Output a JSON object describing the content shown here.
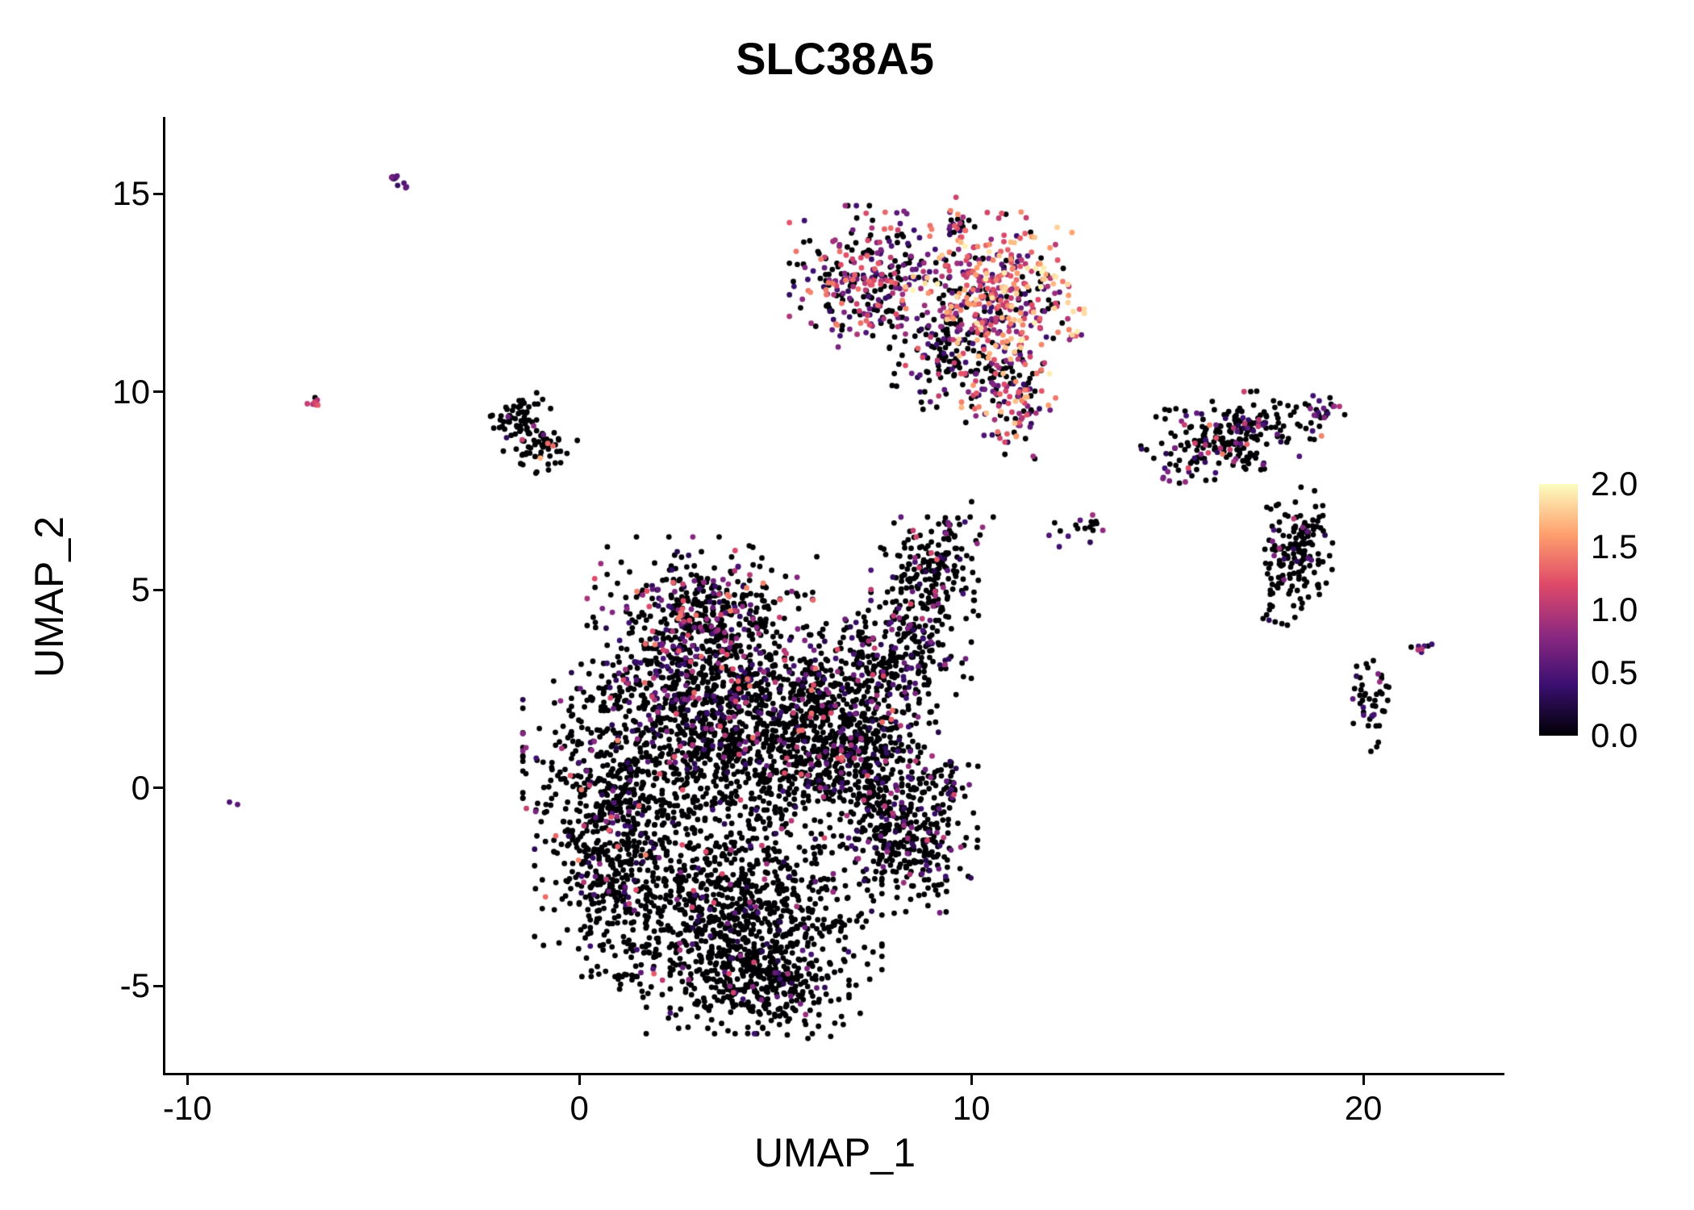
{
  "chart_data": {
    "type": "scatter",
    "title": "SLC38A5",
    "xlabel": "UMAP_1",
    "ylabel": "UMAP_2",
    "xlim": [
      -10.56,
      23.6
    ],
    "ylim": [
      -7.19,
      16.94
    ],
    "x_ticks": [
      -10,
      0,
      10,
      20
    ],
    "y_ticks": [
      15,
      10,
      5,
      0,
      -5
    ],
    "grid": false,
    "point_radius_px": 3.4,
    "seed": 7,
    "colorbar": {
      "position": "right",
      "vmin": 0,
      "vmax": 2,
      "ticks": [
        2.0,
        1.5,
        1.0,
        0.5,
        0.0
      ],
      "tick_labels": [
        "2.0",
        "1.5",
        "1.0",
        "0.5",
        "0.0"
      ],
      "colormap": "magma",
      "stops": [
        [
          0.0,
          "#000004"
        ],
        [
          0.2,
          "#3B0F70"
        ],
        [
          0.4,
          "#8C2981"
        ],
        [
          0.6,
          "#DE4968"
        ],
        [
          0.8,
          "#FE9F6D"
        ],
        [
          1.0,
          "#FCFDBF"
        ]
      ]
    },
    "clusters": [
      {
        "name": "top-left-streak",
        "cx": -4.72,
        "cy": 15.4,
        "sx": 0.16,
        "sy": 0.07,
        "rot": -35,
        "n": 10,
        "zero_frac": 0.35,
        "expr_min": 0.3,
        "expr_max": 0.9,
        "expr_pow": 1.0
      },
      {
        "name": "left-dot",
        "cx": -6.7,
        "cy": 9.72,
        "sx": 0.1,
        "sy": 0.08,
        "rot": 0,
        "n": 7,
        "zero_frac": 0.3,
        "expr_min": 0.4,
        "expr_max": 1.3,
        "expr_pow": 1.0
      },
      {
        "name": "left-cluster-a",
        "cx": -1.62,
        "cy": 9.35,
        "sx": 0.38,
        "sy": 0.22,
        "rot": 20,
        "n": 55,
        "zero_frac": 0.9,
        "expr_min": 0.3,
        "expr_max": 1.2,
        "expr_pow": 1.5
      },
      {
        "name": "left-cluster-b",
        "cx": -1.05,
        "cy": 8.62,
        "sx": 0.42,
        "sy": 0.28,
        "rot": 0,
        "n": 60,
        "zero_frac": 0.9,
        "expr_min": 0.3,
        "expr_max": 1.7,
        "expr_pow": 1.5
      },
      {
        "name": "left-single",
        "cx": -8.82,
        "cy": -0.42,
        "sx": 0.06,
        "sy": 0.05,
        "rot": 0,
        "n": 2,
        "zero_frac": 0.0,
        "expr_min": 0.45,
        "expr_max": 0.65,
        "expr_pow": 1.0
      },
      {
        "name": "top-cluster-left",
        "cx": 7.4,
        "cy": 12.9,
        "sx": 0.85,
        "sy": 0.75,
        "rot": 0,
        "n": 300,
        "zero_frac": 0.42,
        "expr_min": 0.3,
        "expr_max": 1.5,
        "expr_pow": 1.2
      },
      {
        "name": "top-cluster-right",
        "cx": 10.6,
        "cy": 12.5,
        "sx": 0.95,
        "sy": 0.85,
        "rot": 0,
        "n": 400,
        "zero_frac": 0.18,
        "expr_min": 0.35,
        "expr_max": 2.0,
        "expr_pow": 0.9
      },
      {
        "name": "top-cluster-stem",
        "cx": 10.95,
        "cy": 10.1,
        "sx": 0.5,
        "sy": 0.85,
        "rot": 0,
        "n": 160,
        "zero_frac": 0.3,
        "expr_min": 0.3,
        "expr_max": 1.8,
        "expr_pow": 1.1
      },
      {
        "name": "top-cluster-dark",
        "cx": 9.3,
        "cy": 11.0,
        "sx": 0.55,
        "sy": 0.6,
        "rot": 0,
        "n": 110,
        "zero_frac": 0.8,
        "expr_min": 0.25,
        "expr_max": 1.2,
        "expr_pow": 1.5
      },
      {
        "name": "top-streak",
        "cx": 9.65,
        "cy": 14.3,
        "sx": 0.12,
        "sy": 0.3,
        "rot": 0,
        "n": 25,
        "zero_frac": 0.35,
        "expr_min": 0.3,
        "expr_max": 1.6,
        "expr_pow": 1.2
      },
      {
        "name": "right-cluster",
        "cx": 16.6,
        "cy": 8.9,
        "sx": 0.95,
        "sy": 0.42,
        "rot": 12,
        "n": 240,
        "zero_frac": 0.8,
        "expr_min": 0.25,
        "expr_max": 1.5,
        "expr_pow": 1.6
      },
      {
        "name": "right-cluster-ne",
        "cx": 18.95,
        "cy": 9.5,
        "sx": 0.3,
        "sy": 0.18,
        "rot": 20,
        "n": 22,
        "zero_frac": 0.55,
        "expr_min": 0.3,
        "expr_max": 1.1,
        "expr_pow": 1.4
      },
      {
        "name": "right-cluster-sw",
        "cx": 15.15,
        "cy": 7.95,
        "sx": 0.18,
        "sy": 0.13,
        "rot": 0,
        "n": 10,
        "zero_frac": 0.5,
        "expr_min": 0.3,
        "expr_max": 1.0,
        "expr_pow": 1.4
      },
      {
        "name": "right-elongated",
        "cx": 18.25,
        "cy": 5.85,
        "sx": 0.42,
        "sy": 0.72,
        "rot": -15,
        "n": 170,
        "zero_frac": 0.9,
        "expr_min": 0.25,
        "expr_max": 1.2,
        "expr_pow": 1.6
      },
      {
        "name": "bottom-right-cluster",
        "cx": 20.25,
        "cy": 2.1,
        "sx": 0.28,
        "sy": 0.6,
        "rot": 0,
        "n": 45,
        "zero_frac": 0.85,
        "expr_min": 0.3,
        "expr_max": 1.1,
        "expr_pow": 1.5
      },
      {
        "name": "bottom-right-streak",
        "cx": 21.5,
        "cy": 3.55,
        "sx": 0.18,
        "sy": 0.07,
        "rot": 15,
        "n": 8,
        "zero_frac": 0.25,
        "expr_min": 0.4,
        "expr_max": 1.0,
        "expr_pow": 1.2
      },
      {
        "name": "mid-right-blob",
        "cx": 12.8,
        "cy": 6.5,
        "sx": 0.4,
        "sy": 0.17,
        "rot": 0,
        "n": 18,
        "zero_frac": 0.8,
        "expr_min": 0.3,
        "expr_max": 0.9,
        "expr_pow": 1.4
      },
      {
        "name": "bridge-dots",
        "cx": 9.8,
        "cy": 6.7,
        "sx": 0.4,
        "sy": 0.22,
        "rot": 0,
        "n": 14,
        "zero_frac": 0.55,
        "expr_min": 0.3,
        "expr_max": 1.0,
        "expr_pow": 1.3
      },
      {
        "name": "upper-arm-top",
        "cx": 9.0,
        "cy": 5.4,
        "sx": 0.65,
        "sy": 0.6,
        "rot": 0,
        "n": 200,
        "zero_frac": 0.88,
        "expr_min": 0.25,
        "expr_max": 1.3,
        "expr_pow": 1.6
      },
      {
        "name": "upper-arm-mid",
        "cx": 8.2,
        "cy": 3.4,
        "sx": 0.75,
        "sy": 0.65,
        "rot": 0,
        "n": 230,
        "zero_frac": 0.8,
        "expr_min": 0.25,
        "expr_max": 1.3,
        "expr_pow": 1.6
      },
      {
        "name": "main-top-lobe",
        "cx": 3.2,
        "cy": 4.3,
        "sx": 1.25,
        "sy": 0.85,
        "rot": 0,
        "n": 480,
        "zero_frac": 0.7,
        "expr_min": 0.25,
        "expr_max": 1.5,
        "expr_pow": 1.6
      },
      {
        "name": "main-upper-band",
        "cx": 3.4,
        "cy": 2.6,
        "sx": 1.5,
        "sy": 0.75,
        "rot": 0,
        "n": 520,
        "zero_frac": 0.76,
        "expr_min": 0.25,
        "expr_max": 1.4,
        "expr_pow": 1.7
      },
      {
        "name": "main-mid-band",
        "cx": 3.6,
        "cy": 0.8,
        "sx": 2.1,
        "sy": 1.0,
        "rot": 0,
        "n": 820,
        "zero_frac": 0.9,
        "expr_min": 0.25,
        "expr_max": 1.3,
        "expr_pow": 1.8
      },
      {
        "name": "main-left-lobe",
        "cx": 0.9,
        "cy": -1.4,
        "sx": 0.85,
        "sy": 1.4,
        "rot": 0,
        "n": 520,
        "zero_frac": 0.88,
        "expr_min": 0.25,
        "expr_max": 1.5,
        "expr_pow": 1.8
      },
      {
        "name": "main-bottom-lobe",
        "cx": 4.0,
        "cy": -3.2,
        "sx": 1.55,
        "sy": 1.25,
        "rot": 0,
        "n": 950,
        "zero_frac": 0.93,
        "expr_min": 0.25,
        "expr_max": 1.2,
        "expr_pow": 1.8
      },
      {
        "name": "main-bottom-tip",
        "cx": 4.6,
        "cy": -5.0,
        "sx": 0.95,
        "sy": 0.55,
        "rot": 0,
        "n": 260,
        "zero_frac": 0.93,
        "expr_min": 0.25,
        "expr_max": 1.0,
        "expr_pow": 1.8
      },
      {
        "name": "main-right-band",
        "cx": 6.3,
        "cy": 1.5,
        "sx": 0.95,
        "sy": 1.15,
        "rot": 0,
        "n": 460,
        "zero_frac": 0.82,
        "expr_min": 0.25,
        "expr_max": 1.4,
        "expr_pow": 1.7
      },
      {
        "name": "right-arm-upper",
        "cx": 7.6,
        "cy": 0.3,
        "sx": 0.65,
        "sy": 1.1,
        "rot": 0,
        "n": 260,
        "zero_frac": 0.85,
        "expr_min": 0.25,
        "expr_max": 1.3,
        "expr_pow": 1.7
      },
      {
        "name": "right-arm-lower",
        "cx": 8.6,
        "cy": -1.4,
        "sx": 0.65,
        "sy": 0.75,
        "rot": 0,
        "n": 230,
        "zero_frac": 0.88,
        "expr_min": 0.25,
        "expr_max": 1.2,
        "expr_pow": 1.7
      },
      {
        "name": "right-arm-tip",
        "cx": 9.4,
        "cy": 0.15,
        "sx": 0.32,
        "sy": 0.28,
        "rot": 0,
        "n": 40,
        "zero_frac": 0.75,
        "expr_min": 0.25,
        "expr_max": 1.2,
        "expr_pow": 1.5
      }
    ]
  }
}
